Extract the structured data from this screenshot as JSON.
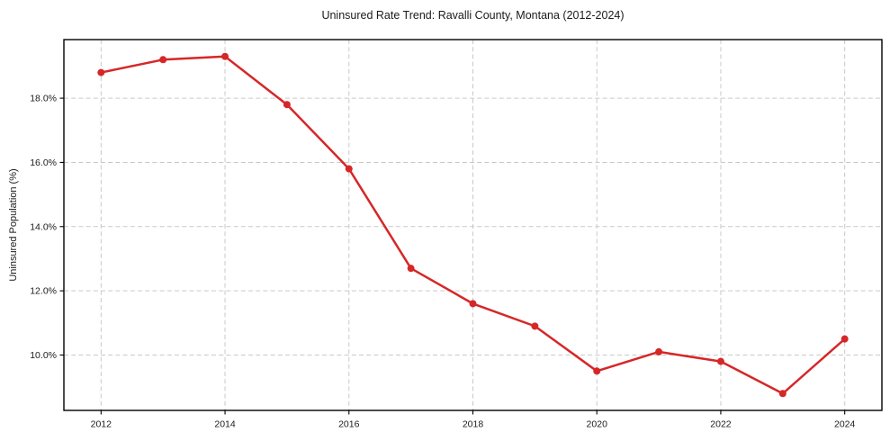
{
  "chart_data": {
    "type": "line",
    "title": "Uninsured Rate Trend: Ravalli County, Montana (2012-2024)",
    "xlabel": "",
    "ylabel": "Uninsured Population (%)",
    "x": [
      2012,
      2013,
      2014,
      2015,
      2016,
      2017,
      2018,
      2019,
      2020,
      2021,
      2022,
      2023,
      2024
    ],
    "values": [
      18.8,
      19.2,
      19.3,
      17.8,
      15.8,
      12.7,
      11.6,
      10.9,
      9.5,
      10.1,
      9.8,
      8.8,
      10.5
    ],
    "x_ticks": [
      2012,
      2014,
      2016,
      2018,
      2020,
      2022,
      2024
    ],
    "x_tick_labels": [
      "2012",
      "2014",
      "2016",
      "2018",
      "2020",
      "2022",
      "2024"
    ],
    "y_ticks": [
      10,
      12,
      14,
      16,
      18
    ],
    "y_tick_labels": [
      "10.0%",
      "12.0%",
      "14.0%",
      "16.0%",
      "18.0%"
    ],
    "xlim": [
      2011.4,
      2024.6
    ],
    "ylim": [
      8.275,
      19.825
    ],
    "grid": true,
    "grid_style": "dashed",
    "legend": null,
    "line_color": "#d62728",
    "marker": "circle",
    "grid_color": "#c9c9c9",
    "spine_color": "#000000",
    "background": "#ffffff"
  }
}
